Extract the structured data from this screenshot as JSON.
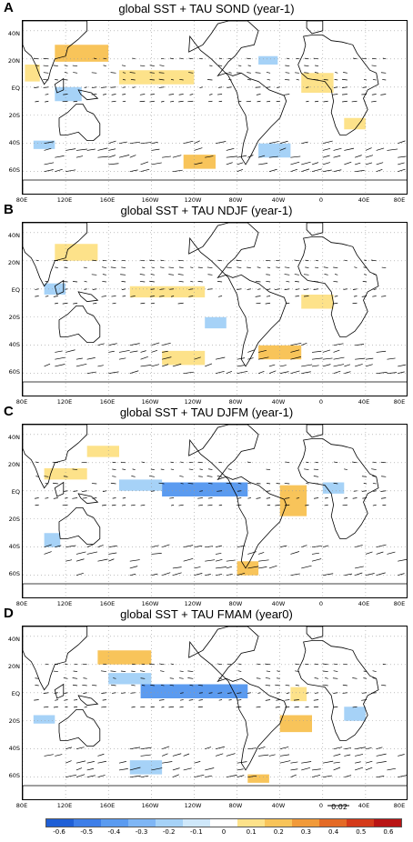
{
  "panels": [
    {
      "letter": "A",
      "title": "global SST + TAU SOND (year-1)"
    },
    {
      "letter": "B",
      "title": "global SST + TAU NDJF (year-1)"
    },
    {
      "letter": "C",
      "title": "global SST + TAU DJFM (year-1)"
    },
    {
      "letter": "D",
      "title": "global SST + TAU FMAM (year0)"
    }
  ],
  "lat_labels": [
    "40N",
    "20N",
    "EQ",
    "20S",
    "40S",
    "60S"
  ],
  "lon_labels_ab": [
    "80E",
    "120E",
    "160E",
    "160W",
    "120W",
    "80W",
    "40W",
    "0",
    "40E",
    "80E"
  ],
  "lon_labels_cd": [
    "80E",
    "120E",
    "160E",
    "160W",
    "120W",
    "80W",
    "40W",
    "0",
    "40E",
    "80E"
  ],
  "reference_vector": {
    "label": "0.02"
  },
  "colorbar": {
    "labels": [
      "-0.6",
      "-0.5",
      "-0.4",
      "-0.3",
      "-0.2",
      "-0.1",
      "0",
      "0.1",
      "0.2",
      "0.3",
      "0.4",
      "0.5",
      "0.6"
    ],
    "colors": [
      "#1f5fd6",
      "#3e7ee8",
      "#5b9bf0",
      "#7fb6f5",
      "#a6d2f7",
      "#cfe8fa",
      "#ffffff",
      "#fde28a",
      "#f8c45a",
      "#f19a3a",
      "#e46a26",
      "#d43a1a",
      "#b81414"
    ]
  },
  "colors": {
    "ocean": "#ffffff",
    "land_outline": "#000000",
    "grid": "#9a9a9a",
    "warm": "#f8c45a",
    "cool": "#a6d2f7",
    "strong_cool": "#5b9bf0"
  }
}
